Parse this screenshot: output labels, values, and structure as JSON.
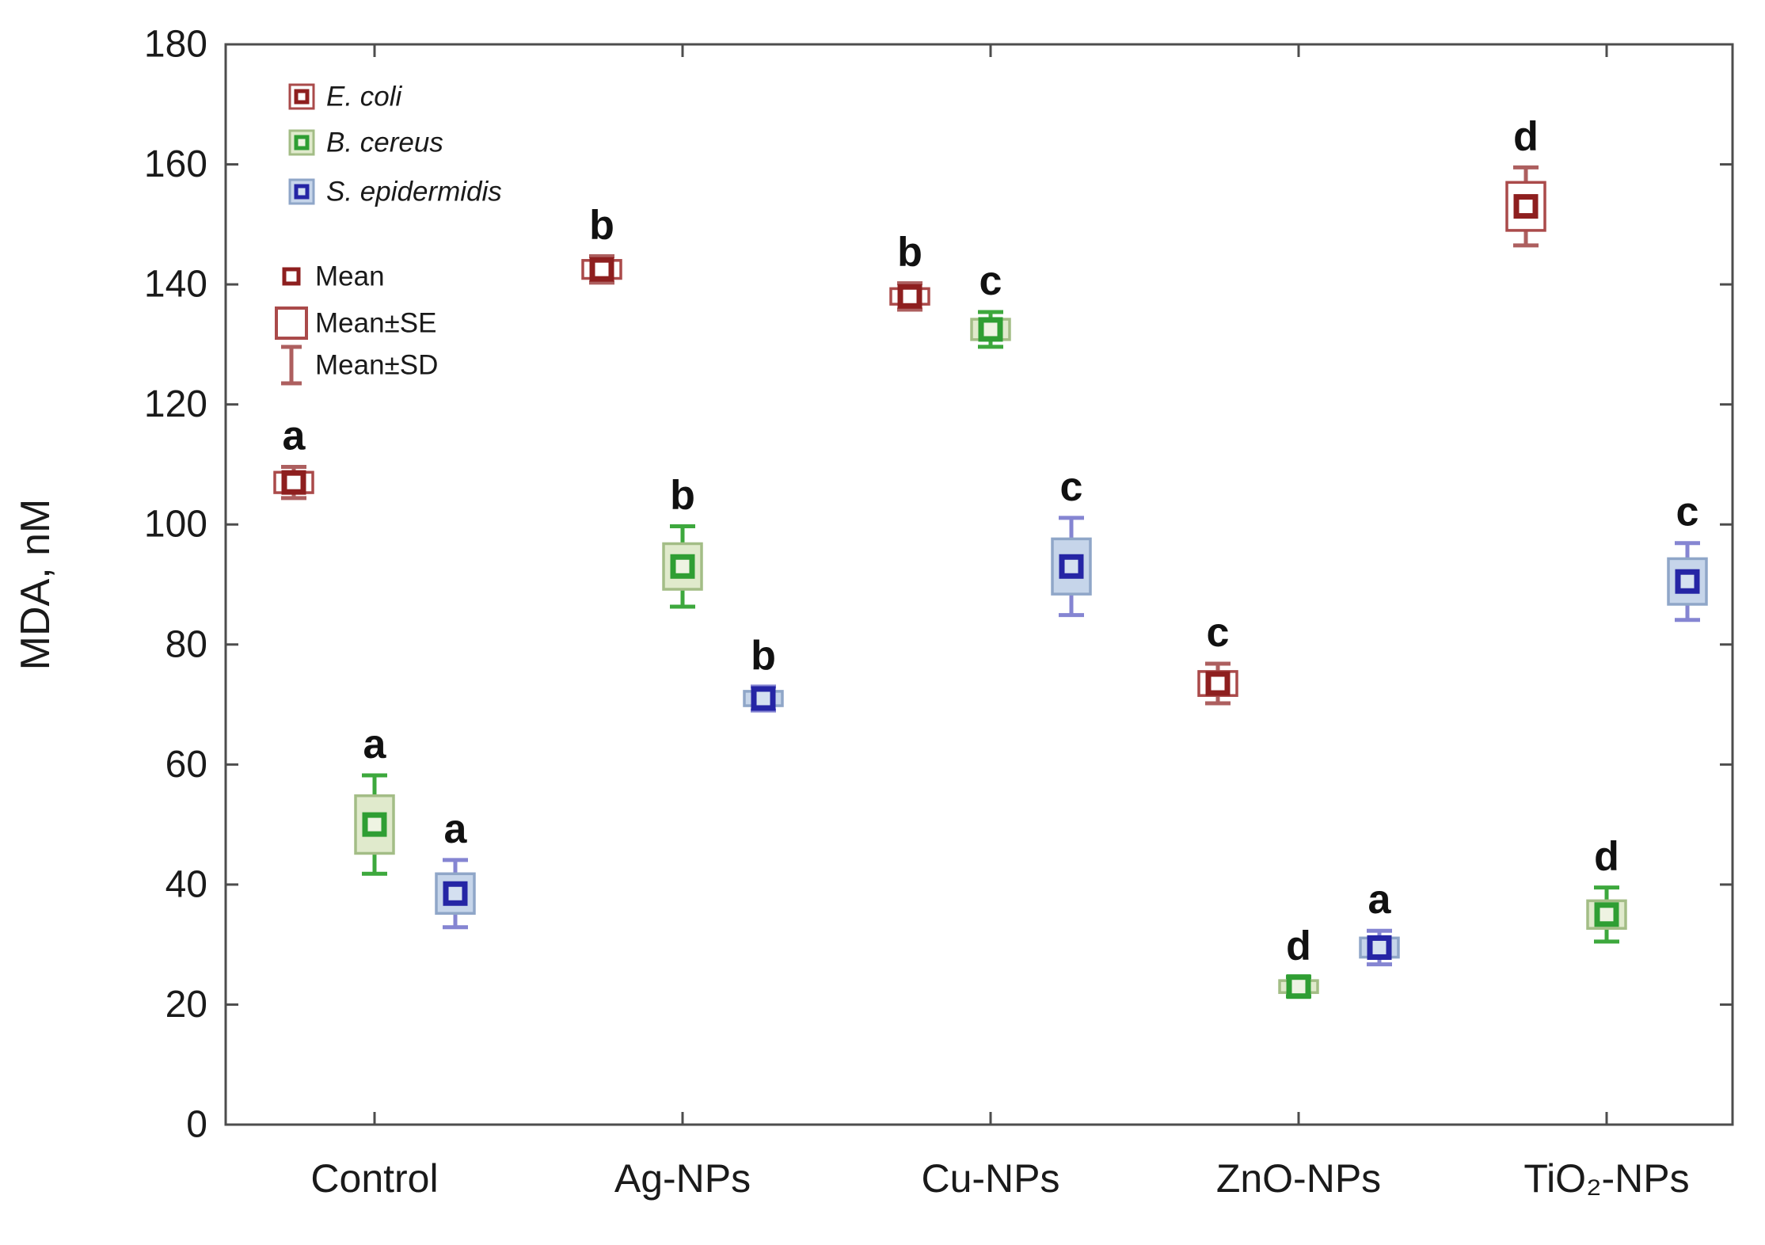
{
  "chart_data": {
    "type": "box",
    "subtype": "mean-se-sd-boxplot",
    "title": "",
    "xlabel": "",
    "ylabel": "MDA, nM",
    "ylim": [
      0,
      180
    ],
    "yticks": [
      0,
      20,
      40,
      60,
      80,
      100,
      120,
      140,
      160,
      180
    ],
    "grid": false,
    "frame": true,
    "frame_color": "#4d4d4d",
    "text_color": "#1a1a1a",
    "letter_color": "#111111",
    "categories": [
      "Control",
      "Ag-NPs",
      "Cu-NPs",
      "ZnO-NPs",
      "TiO₂-NPs"
    ],
    "series": [
      {
        "name": "E. coli",
        "colors": {
          "marker": "#8e1f1f",
          "marker_fill": "#ffffff",
          "box_edge": "#aa4a4a",
          "box_fill": "#ffffff",
          "whisker": "#ad5f5f"
        },
        "points": [
          {
            "mean": 107,
            "se": 1.7,
            "sd": 2.6,
            "letter": "a"
          },
          {
            "mean": 142.5,
            "se": 1.5,
            "sd": 2.2,
            "letter": "b"
          },
          {
            "mean": 138,
            "se": 1.3,
            "sd": 2.2,
            "letter": "b"
          },
          {
            "mean": 73.5,
            "se": 2.0,
            "sd": 3.3,
            "letter": "c"
          },
          {
            "mean": 153,
            "se": 4.0,
            "sd": 6.5,
            "letter": "d"
          }
        ]
      },
      {
        "name": "B. cereus",
        "colors": {
          "marker": "#2f9e33",
          "marker_fill": "#eef3e2",
          "box_edge": "#a3bd86",
          "box_fill": "#e0eacc",
          "whisker": "#3da83d"
        },
        "points": [
          {
            "mean": 50,
            "se": 4.8,
            "sd": 8.2,
            "letter": "a"
          },
          {
            "mean": 93,
            "se": 3.8,
            "sd": 6.7,
            "letter": "b"
          },
          {
            "mean": 132.5,
            "se": 1.7,
            "sd": 2.9,
            "letter": "c"
          },
          {
            "mean": 23,
            "se": 1.0,
            "sd": 1.6,
            "letter": "d"
          },
          {
            "mean": 35,
            "se": 2.3,
            "sd": 4.5,
            "letter": "d"
          }
        ]
      },
      {
        "name": "S. epidermidis",
        "colors": {
          "marker": "#2525a5",
          "marker_fill": "#d4e0f0",
          "box_edge": "#8fa6c8",
          "box_fill": "#c6d5ea",
          "whisker": "#8585d2"
        },
        "points": [
          {
            "mean": 38.5,
            "se": 3.3,
            "sd": 5.6,
            "letter": "a"
          },
          {
            "mean": 71,
            "se": 1.2,
            "sd": 2.0,
            "letter": "b"
          },
          {
            "mean": 93,
            "se": 4.6,
            "sd": 8.1,
            "letter": "c"
          },
          {
            "mean": 29.5,
            "se": 1.6,
            "sd": 2.8,
            "letter": "a"
          },
          {
            "mean": 90.5,
            "se": 3.8,
            "sd": 6.4,
            "letter": "c"
          }
        ]
      }
    ],
    "legend": {
      "position": "top-left-inside",
      "species_items": [
        "E. coli",
        "B. cereus",
        "S. epidermidis"
      ],
      "stat_items": [
        "Mean",
        "Mean±SE",
        "Mean±SD"
      ],
      "stat_glyph_color_dark": "#8e1f1f",
      "stat_glyph_color_edge": "#aa4a4a",
      "stat_glyph_color_whisker": "#ad5f5f"
    }
  }
}
